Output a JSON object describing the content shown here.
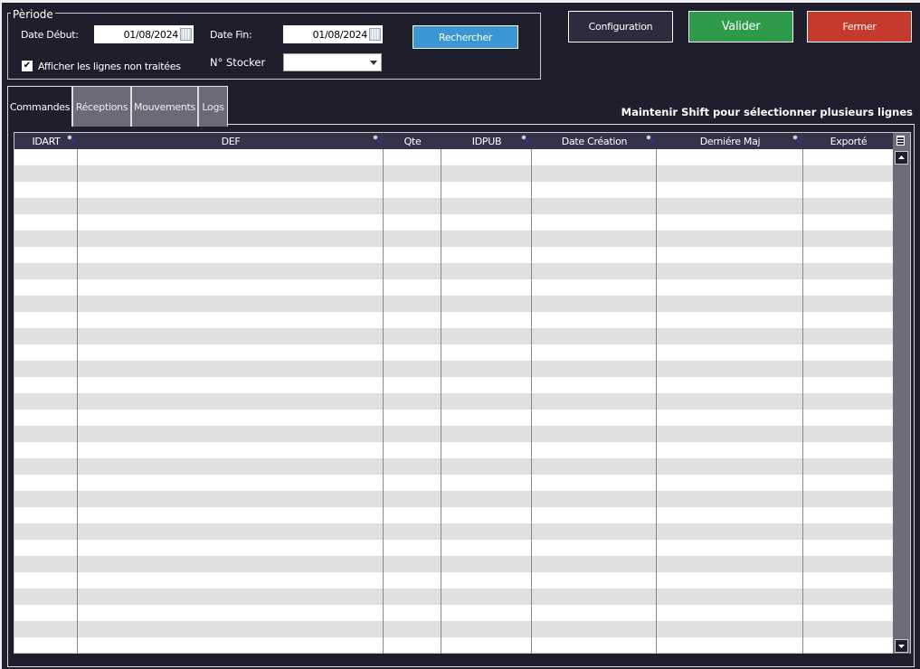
{
  "periode": {
    "legend": "Pèriode",
    "date_debut_label": "Date Début:",
    "date_debut": "01/08/2024",
    "date_fin_label": "Date Fin:",
    "date_fin": "01/08/2024",
    "stocker_label": "N° Stocker",
    "stocker_value": "",
    "checkbox_label": "Afficher les lignes non traitées",
    "checkbox_checked": true,
    "search_label": "Rechercher"
  },
  "buttons": {
    "configuration": "Configuration",
    "valider": "Valider",
    "fermer": "Fermer"
  },
  "colors": {
    "background": "#1f1e2d",
    "valider": "#2e9a4a",
    "fermer": "#c63a2e",
    "rechercher": "#3a97d4"
  },
  "tabs": [
    {
      "label": "Commandes",
      "active": true
    },
    {
      "label": "Réceptions"
    },
    {
      "label": "Mouvements"
    },
    {
      "label": "Logs"
    }
  ],
  "hint": "Maintenir Shift pour sélectionner plusieurs lignes",
  "table": {
    "columns": [
      {
        "label": "IDART",
        "search": true
      },
      {
        "label": "DEF",
        "search": true
      },
      {
        "label": "Qte",
        "search": false
      },
      {
        "label": "IDPUB",
        "search": true
      },
      {
        "label": "Date Création",
        "search": true
      },
      {
        "label": "Derniére Maj",
        "search": true
      },
      {
        "label": "Exporté",
        "search": false
      }
    ],
    "rows": []
  }
}
